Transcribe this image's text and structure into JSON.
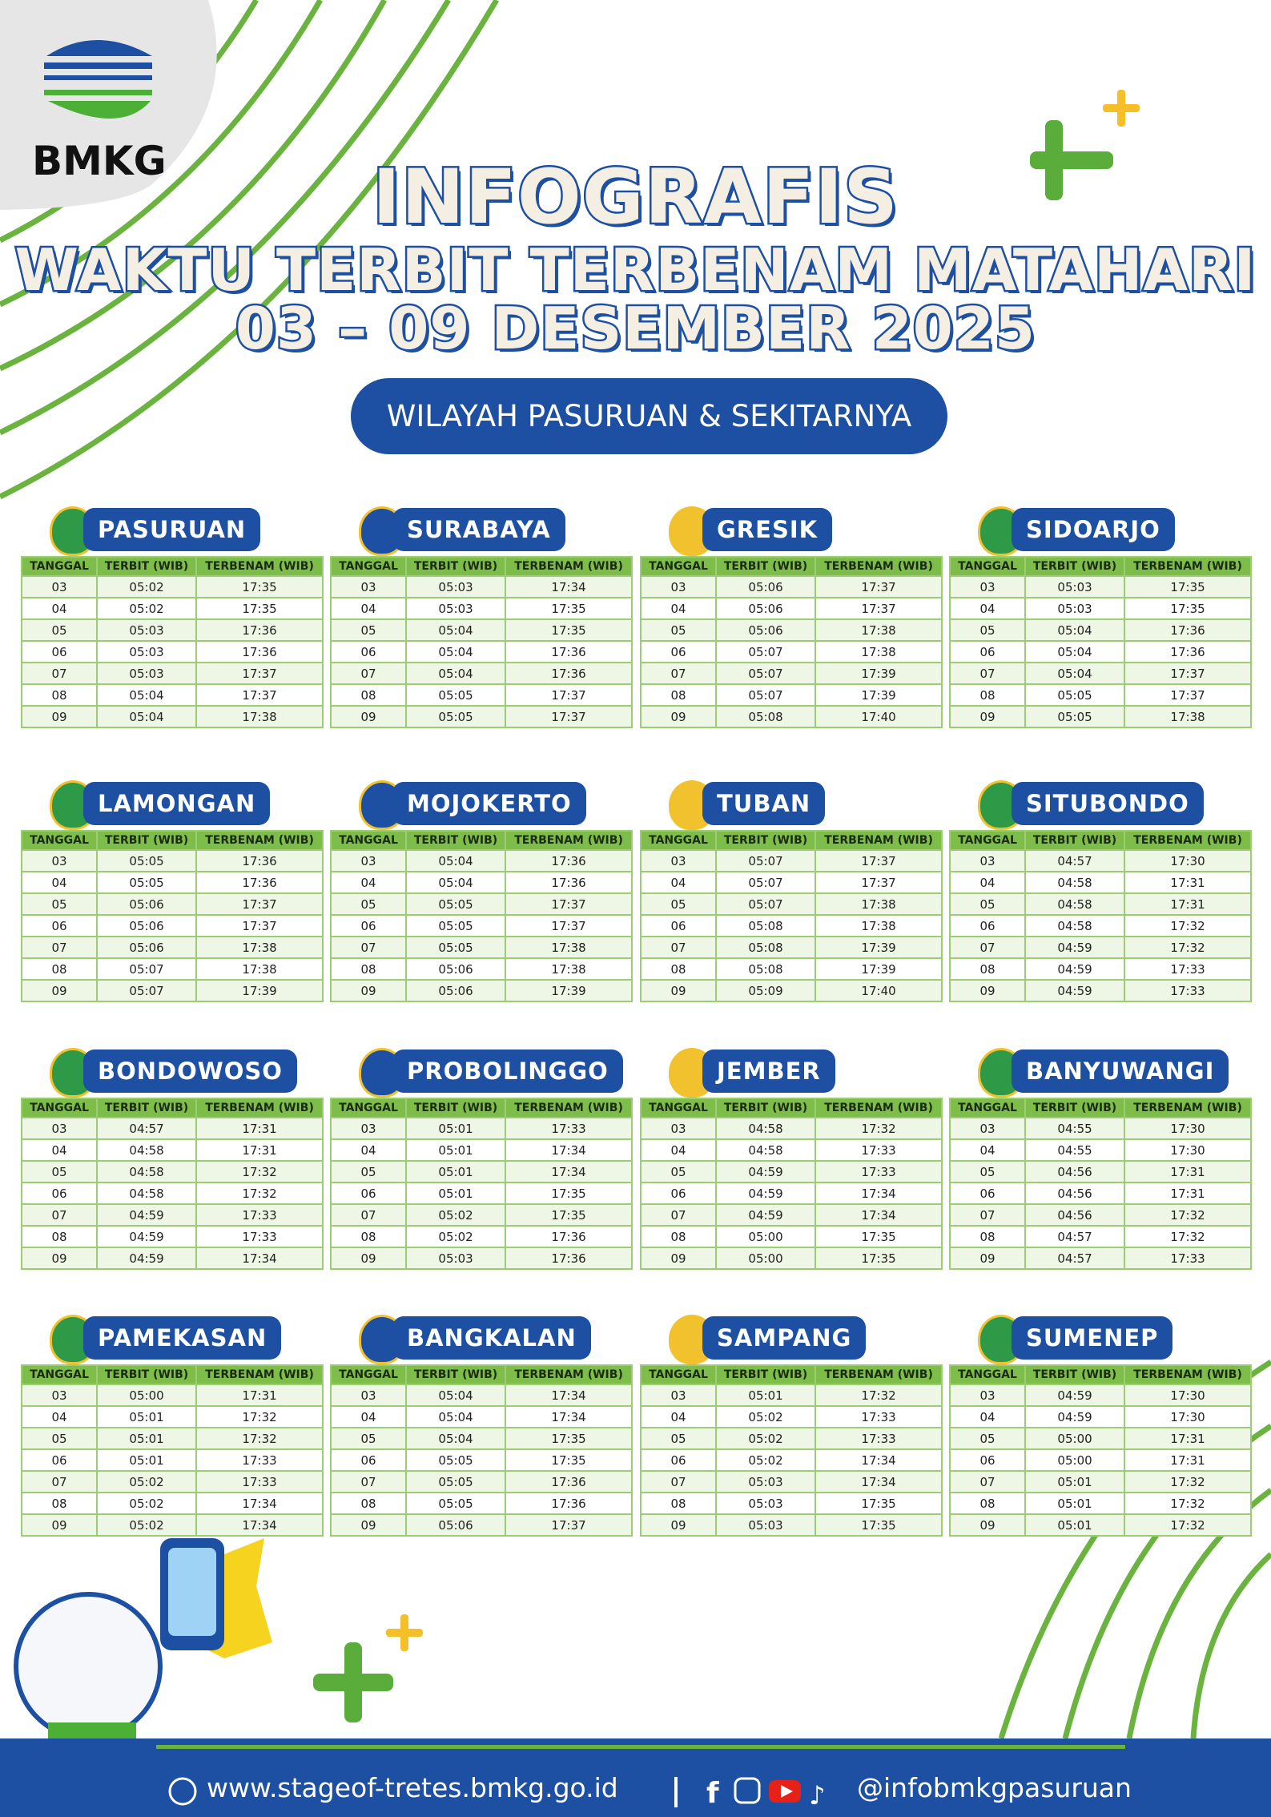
{
  "logo": {
    "text": "BMKG"
  },
  "header": {
    "title": "INFOGRAFIS",
    "subtitle": "WAKTU TERBIT TERBENAM MATAHARI",
    "date_range": "03 – 09 DESEMBER 2025",
    "region": "WILAYAH PASURUAN & SEKITARNYA"
  },
  "columns": [
    "TANGGAL",
    "TERBIT (WIB)",
    "TERBENAM (WIB)"
  ],
  "tables": [
    {
      "name": "PASURUAN",
      "rows": [
        [
          "03",
          "05:02",
          "17:35"
        ],
        [
          "04",
          "05:02",
          "17:35"
        ],
        [
          "05",
          "05:03",
          "17:36"
        ],
        [
          "06",
          "05:03",
          "17:36"
        ],
        [
          "07",
          "05:03",
          "17:37"
        ],
        [
          "08",
          "05:04",
          "17:37"
        ],
        [
          "09",
          "05:04",
          "17:38"
        ]
      ]
    },
    {
      "name": "SURABAYA",
      "rows": [
        [
          "03",
          "05:03",
          "17:34"
        ],
        [
          "04",
          "05:03",
          "17:35"
        ],
        [
          "05",
          "05:04",
          "17:35"
        ],
        [
          "06",
          "05:04",
          "17:36"
        ],
        [
          "07",
          "05:04",
          "17:36"
        ],
        [
          "08",
          "05:05",
          "17:37"
        ],
        [
          "09",
          "05:05",
          "17:37"
        ]
      ]
    },
    {
      "name": "GRESIK",
      "rows": [
        [
          "03",
          "05:06",
          "17:37"
        ],
        [
          "04",
          "05:06",
          "17:37"
        ],
        [
          "05",
          "05:06",
          "17:38"
        ],
        [
          "06",
          "05:07",
          "17:38"
        ],
        [
          "07",
          "05:07",
          "17:39"
        ],
        [
          "08",
          "05:07",
          "17:39"
        ],
        [
          "09",
          "05:08",
          "17:40"
        ]
      ]
    },
    {
      "name": "SIDOARJO",
      "rows": [
        [
          "03",
          "05:03",
          "17:35"
        ],
        [
          "04",
          "05:03",
          "17:35"
        ],
        [
          "05",
          "05:04",
          "17:36"
        ],
        [
          "06",
          "05:04",
          "17:36"
        ],
        [
          "07",
          "05:04",
          "17:37"
        ],
        [
          "08",
          "05:05",
          "17:37"
        ],
        [
          "09",
          "05:05",
          "17:38"
        ]
      ]
    },
    {
      "name": "LAMONGAN",
      "rows": [
        [
          "03",
          "05:05",
          "17:36"
        ],
        [
          "04",
          "05:05",
          "17:36"
        ],
        [
          "05",
          "05:06",
          "17:37"
        ],
        [
          "06",
          "05:06",
          "17:37"
        ],
        [
          "07",
          "05:06",
          "17:38"
        ],
        [
          "08",
          "05:07",
          "17:38"
        ],
        [
          "09",
          "05:07",
          "17:39"
        ]
      ]
    },
    {
      "name": "MOJOKERTO",
      "rows": [
        [
          "03",
          "05:04",
          "17:36"
        ],
        [
          "04",
          "05:04",
          "17:36"
        ],
        [
          "05",
          "05:05",
          "17:37"
        ],
        [
          "06",
          "05:05",
          "17:37"
        ],
        [
          "07",
          "05:05",
          "17:38"
        ],
        [
          "08",
          "05:06",
          "17:38"
        ],
        [
          "09",
          "05:06",
          "17:39"
        ]
      ]
    },
    {
      "name": "TUBAN",
      "rows": [
        [
          "03",
          "05:07",
          "17:37"
        ],
        [
          "04",
          "05:07",
          "17:37"
        ],
        [
          "05",
          "05:07",
          "17:38"
        ],
        [
          "06",
          "05:08",
          "17:38"
        ],
        [
          "07",
          "05:08",
          "17:39"
        ],
        [
          "08",
          "05:08",
          "17:39"
        ],
        [
          "09",
          "05:09",
          "17:40"
        ]
      ]
    },
    {
      "name": "SITUBONDO",
      "rows": [
        [
          "03",
          "04:57",
          "17:30"
        ],
        [
          "04",
          "04:58",
          "17:31"
        ],
        [
          "05",
          "04:58",
          "17:31"
        ],
        [
          "06",
          "04:58",
          "17:32"
        ],
        [
          "07",
          "04:59",
          "17:32"
        ],
        [
          "08",
          "04:59",
          "17:33"
        ],
        [
          "09",
          "04:59",
          "17:33"
        ]
      ]
    },
    {
      "name": "BONDOWOSO",
      "rows": [
        [
          "03",
          "04:57",
          "17:31"
        ],
        [
          "04",
          "04:58",
          "17:31"
        ],
        [
          "05",
          "04:58",
          "17:32"
        ],
        [
          "06",
          "04:58",
          "17:32"
        ],
        [
          "07",
          "04:59",
          "17:33"
        ],
        [
          "08",
          "04:59",
          "17:33"
        ],
        [
          "09",
          "04:59",
          "17:34"
        ]
      ]
    },
    {
      "name": "PROBOLINGGO",
      "rows": [
        [
          "03",
          "05:01",
          "17:33"
        ],
        [
          "04",
          "05:01",
          "17:34"
        ],
        [
          "05",
          "05:01",
          "17:34"
        ],
        [
          "06",
          "05:01",
          "17:35"
        ],
        [
          "07",
          "05:02",
          "17:35"
        ],
        [
          "08",
          "05:02",
          "17:36"
        ],
        [
          "09",
          "05:03",
          "17:36"
        ]
      ]
    },
    {
      "name": "JEMBER",
      "rows": [
        [
          "03",
          "04:58",
          "17:32"
        ],
        [
          "04",
          "04:58",
          "17:33"
        ],
        [
          "05",
          "04:59",
          "17:33"
        ],
        [
          "06",
          "04:59",
          "17:34"
        ],
        [
          "07",
          "04:59",
          "17:34"
        ],
        [
          "08",
          "05:00",
          "17:35"
        ],
        [
          "09",
          "05:00",
          "17:35"
        ]
      ]
    },
    {
      "name": "BANYUWANGI",
      "rows": [
        [
          "03",
          "04:55",
          "17:30"
        ],
        [
          "04",
          "04:55",
          "17:30"
        ],
        [
          "05",
          "04:56",
          "17:31"
        ],
        [
          "06",
          "04:56",
          "17:31"
        ],
        [
          "07",
          "04:56",
          "17:32"
        ],
        [
          "08",
          "04:57",
          "17:32"
        ],
        [
          "09",
          "04:57",
          "17:33"
        ]
      ]
    },
    {
      "name": "PAMEKASAN",
      "rows": [
        [
          "03",
          "05:00",
          "17:31"
        ],
        [
          "04",
          "05:01",
          "17:32"
        ],
        [
          "05",
          "05:01",
          "17:32"
        ],
        [
          "06",
          "05:01",
          "17:33"
        ],
        [
          "07",
          "05:02",
          "17:33"
        ],
        [
          "08",
          "05:02",
          "17:34"
        ],
        [
          "09",
          "05:02",
          "17:34"
        ]
      ]
    },
    {
      "name": "BANGKALAN",
      "rows": [
        [
          "03",
          "05:04",
          "17:34"
        ],
        [
          "04",
          "05:04",
          "17:34"
        ],
        [
          "05",
          "05:04",
          "17:35"
        ],
        [
          "06",
          "05:05",
          "17:35"
        ],
        [
          "07",
          "05:05",
          "17:36"
        ],
        [
          "08",
          "05:05",
          "17:36"
        ],
        [
          "09",
          "05:06",
          "17:37"
        ]
      ]
    },
    {
      "name": "SAMPANG",
      "rows": [
        [
          "03",
          "05:01",
          "17:32"
        ],
        [
          "04",
          "05:02",
          "17:33"
        ],
        [
          "05",
          "05:02",
          "17:33"
        ],
        [
          "06",
          "05:02",
          "17:34"
        ],
        [
          "07",
          "05:03",
          "17:34"
        ],
        [
          "08",
          "05:03",
          "17:35"
        ],
        [
          "09",
          "05:03",
          "17:35"
        ]
      ]
    },
    {
      "name": "SUMENEP",
      "rows": [
        [
          "03",
          "04:59",
          "17:30"
        ],
        [
          "04",
          "04:59",
          "17:30"
        ],
        [
          "05",
          "05:00",
          "17:31"
        ],
        [
          "06",
          "05:00",
          "17:31"
        ],
        [
          "07",
          "05:01",
          "17:32"
        ],
        [
          "08",
          "05:01",
          "17:32"
        ],
        [
          "09",
          "05:01",
          "17:32"
        ]
      ]
    }
  ],
  "footer": {
    "website": "www.stageof-tretes.bmkg.go.id",
    "social": "@infobmkgpasuruan"
  }
}
